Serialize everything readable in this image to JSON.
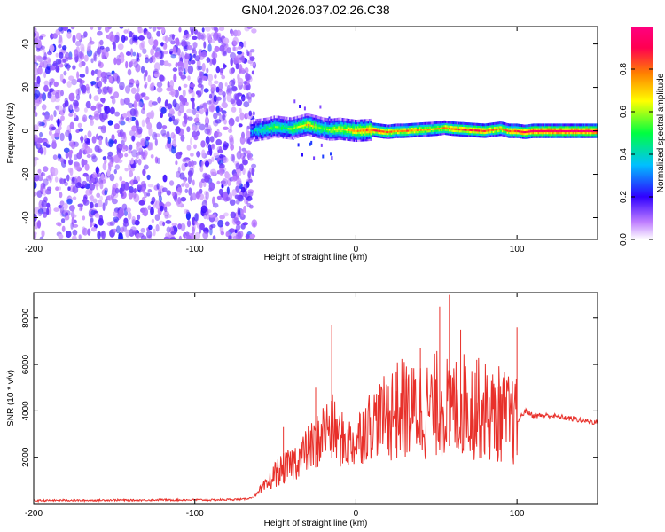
{
  "figure_title": "GN04.2026.037.02.26.C38",
  "chart_data": [
    {
      "type": "heatmap",
      "xlabel": "Height of straight line (km)",
      "ylabel": "Frequency (Hz)",
      "xlim": [
        -200,
        150
      ],
      "ylim": [
        -50,
        48
      ],
      "xticks": [
        -200,
        -100,
        0,
        100
      ],
      "yticks": [
        -40,
        -20,
        0,
        20,
        40
      ],
      "colorbar": {
        "label": "Normalized spectral amplitude",
        "range": [
          0,
          1
        ],
        "ticks": [
          0.0,
          0.2,
          0.4,
          0.6,
          0.8
        ],
        "colormap": [
          "#ffffff",
          "#8a2be2",
          "#0000ff",
          "#00d0ff",
          "#00ff40",
          "#ffff00",
          "#ff8000",
          "#ff0050"
        ]
      },
      "noise_region": {
        "x_range": [
          -200,
          -63
        ],
        "amplitude_range": [
          0.05,
          0.25
        ]
      },
      "signal_ridge": {
        "x": [
          -65,
          -60,
          -55,
          -50,
          -45,
          -40,
          -35,
          -30,
          -25,
          -20,
          -15,
          -10,
          -5,
          0,
          10,
          15,
          20,
          25,
          30,
          40,
          50,
          55,
          60,
          70,
          80,
          85,
          90,
          95,
          100,
          105,
          110,
          120,
          130,
          140,
          150
        ],
        "frequency": [
          0,
          0.5,
          1,
          2,
          1.5,
          1,
          2,
          3,
          2,
          1,
          0.5,
          1,
          0.5,
          0,
          0.5,
          0,
          -0.5,
          0,
          0,
          0.5,
          1,
          1.5,
          1,
          0.5,
          0,
          0.5,
          1,
          0,
          0,
          -0.5,
          0,
          0,
          0,
          0,
          0
        ],
        "amplitude": [
          0.3,
          0.45,
          0.5,
          0.55,
          0.5,
          0.55,
          0.6,
          0.7,
          0.6,
          0.55,
          0.6,
          0.65,
          0.7,
          0.75,
          0.8,
          0.85,
          0.8,
          0.75,
          0.8,
          0.75,
          0.7,
          0.75,
          0.8,
          0.85,
          0.85,
          0.8,
          0.75,
          0.8,
          0.85,
          0.9,
          0.95,
          0.95,
          0.95,
          0.95,
          0.95
        ]
      }
    },
    {
      "type": "line",
      "xlabel": "Height of straight line (km)",
      "ylabel": "SNR (10 * v/v)",
      "xlim": [
        -200,
        150
      ],
      "ylim": [
        0,
        9100
      ],
      "xticks": [
        -200,
        -100,
        0,
        100
      ],
      "yticks": [
        2000,
        4000,
        6000,
        8000
      ],
      "color": "#e8302a",
      "series": [
        {
          "x": [
            -200,
            -190,
            -180,
            -170,
            -160,
            -150,
            -140,
            -130,
            -120,
            -110,
            -100,
            -90,
            -80,
            -70,
            -65,
            -60,
            -55,
            -50,
            -45,
            -40,
            -35,
            -30,
            -25,
            -20,
            -15,
            -10,
            -5,
            0,
            5,
            10,
            15,
            20,
            25,
            30,
            35,
            40,
            45,
            50,
            55,
            60,
            65,
            70,
            75,
            80,
            85,
            90,
            95,
            100,
            105,
            110,
            120,
            130,
            140,
            150
          ],
          "y": [
            120,
            130,
            140,
            130,
            140,
            150,
            140,
            150,
            160,
            150,
            160,
            150,
            170,
            180,
            250,
            500,
            800,
            1300,
            1500,
            1700,
            2000,
            2300,
            2600,
            3100,
            3300,
            2800,
            2600,
            2700,
            3200,
            3500,
            3700,
            3900,
            4000,
            4100,
            3900,
            4200,
            4000,
            4300,
            4200,
            4100,
            4300,
            4200,
            4100,
            4000,
            3800,
            3900,
            3600,
            3500,
            4000,
            3800,
            3800,
            3700,
            3600,
            3500
          ]
        }
      ],
      "spikes": [
        {
          "x": -45,
          "y": 3300
        },
        {
          "x": -25,
          "y": 5000
        },
        {
          "x": -15,
          "y": 7700
        },
        {
          "x": 25,
          "y": 5700
        },
        {
          "x": 40,
          "y": 6700
        },
        {
          "x": 52,
          "y": 8500
        },
        {
          "x": 58,
          "y": 9000
        },
        {
          "x": 65,
          "y": 7500
        },
        {
          "x": 75,
          "y": 6200
        },
        {
          "x": 100,
          "y": 7600
        }
      ]
    }
  ]
}
